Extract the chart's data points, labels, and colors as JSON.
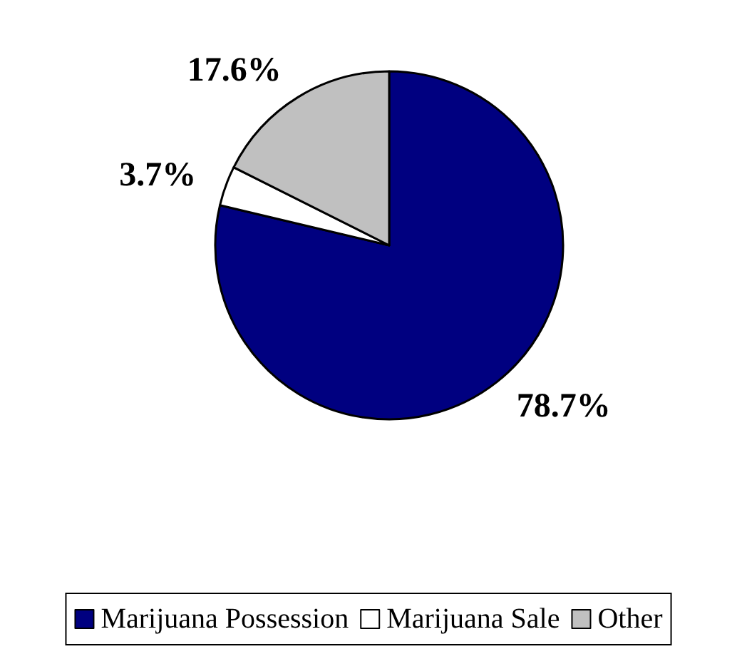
{
  "chart_data": {
    "type": "pie",
    "categories": [
      "Marijuana Possession",
      "Marijuana Sale",
      "Other"
    ],
    "values": [
      78.7,
      3.7,
      17.6
    ],
    "colors": [
      "#000080",
      "#ffffff",
      "#c0c0c0"
    ],
    "value_labels": [
      "78.7%",
      "3.7%",
      "17.6%"
    ],
    "legend": "bottom"
  }
}
